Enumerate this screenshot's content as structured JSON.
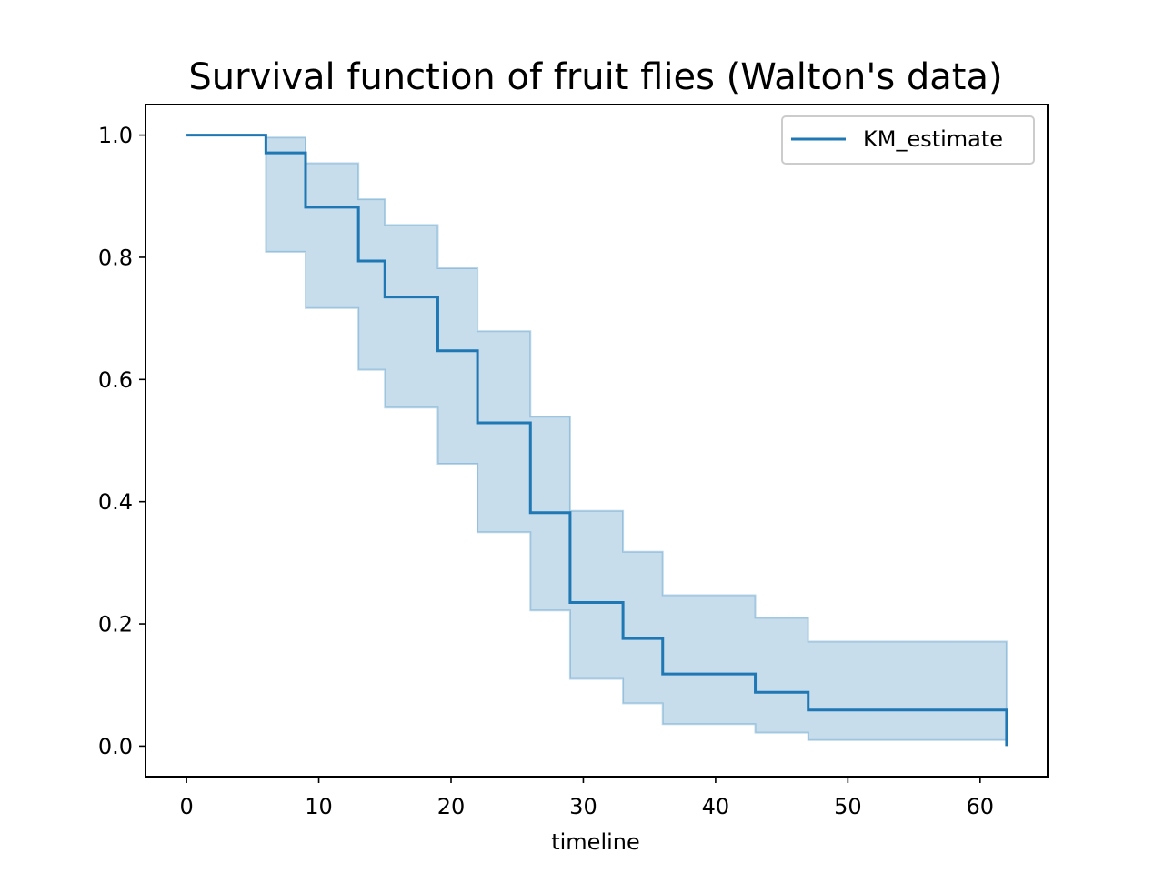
{
  "chart_data": {
    "type": "line",
    "title": "Survival function of fruit flies (Walton's data)",
    "xlabel": "timeline",
    "ylabel": "",
    "xlim": [
      -3.1,
      65.1
    ],
    "ylim": [
      -0.05,
      1.05
    ],
    "x_ticks": [
      0,
      10,
      20,
      30,
      40,
      50,
      60
    ],
    "x_tick_labels": [
      "0",
      "10",
      "20",
      "30",
      "40",
      "50",
      "60"
    ],
    "y_ticks": [
      0.0,
      0.2,
      0.4,
      0.6,
      0.8,
      1.0
    ],
    "y_tick_labels": [
      "0.0",
      "0.2",
      "0.4",
      "0.6",
      "0.8",
      "1.0"
    ],
    "grid": false,
    "legend_position": "top-right",
    "series": [
      {
        "name": "KM_estimate",
        "color": "#1f77b4",
        "step": "post",
        "x": [
          0,
          6,
          9,
          13,
          15,
          19,
          22,
          26,
          29,
          33,
          36,
          43,
          47,
          62
        ],
        "y": [
          1.0,
          0.971,
          0.882,
          0.794,
          0.735,
          0.647,
          0.529,
          0.382,
          0.235,
          0.176,
          0.118,
          0.088,
          0.059,
          0.0
        ],
        "ci_upper": [
          1.0,
          0.996,
          0.954,
          0.895,
          0.853,
          0.782,
          0.679,
          0.539,
          0.385,
          0.318,
          0.247,
          0.21,
          0.171,
          0.171
        ],
        "ci_lower": [
          1.0,
          0.809,
          0.717,
          0.616,
          0.554,
          0.462,
          0.35,
          0.222,
          0.11,
          0.07,
          0.036,
          0.022,
          0.01,
          0.01
        ],
        "ci_color": "#1f77b4"
      }
    ]
  }
}
